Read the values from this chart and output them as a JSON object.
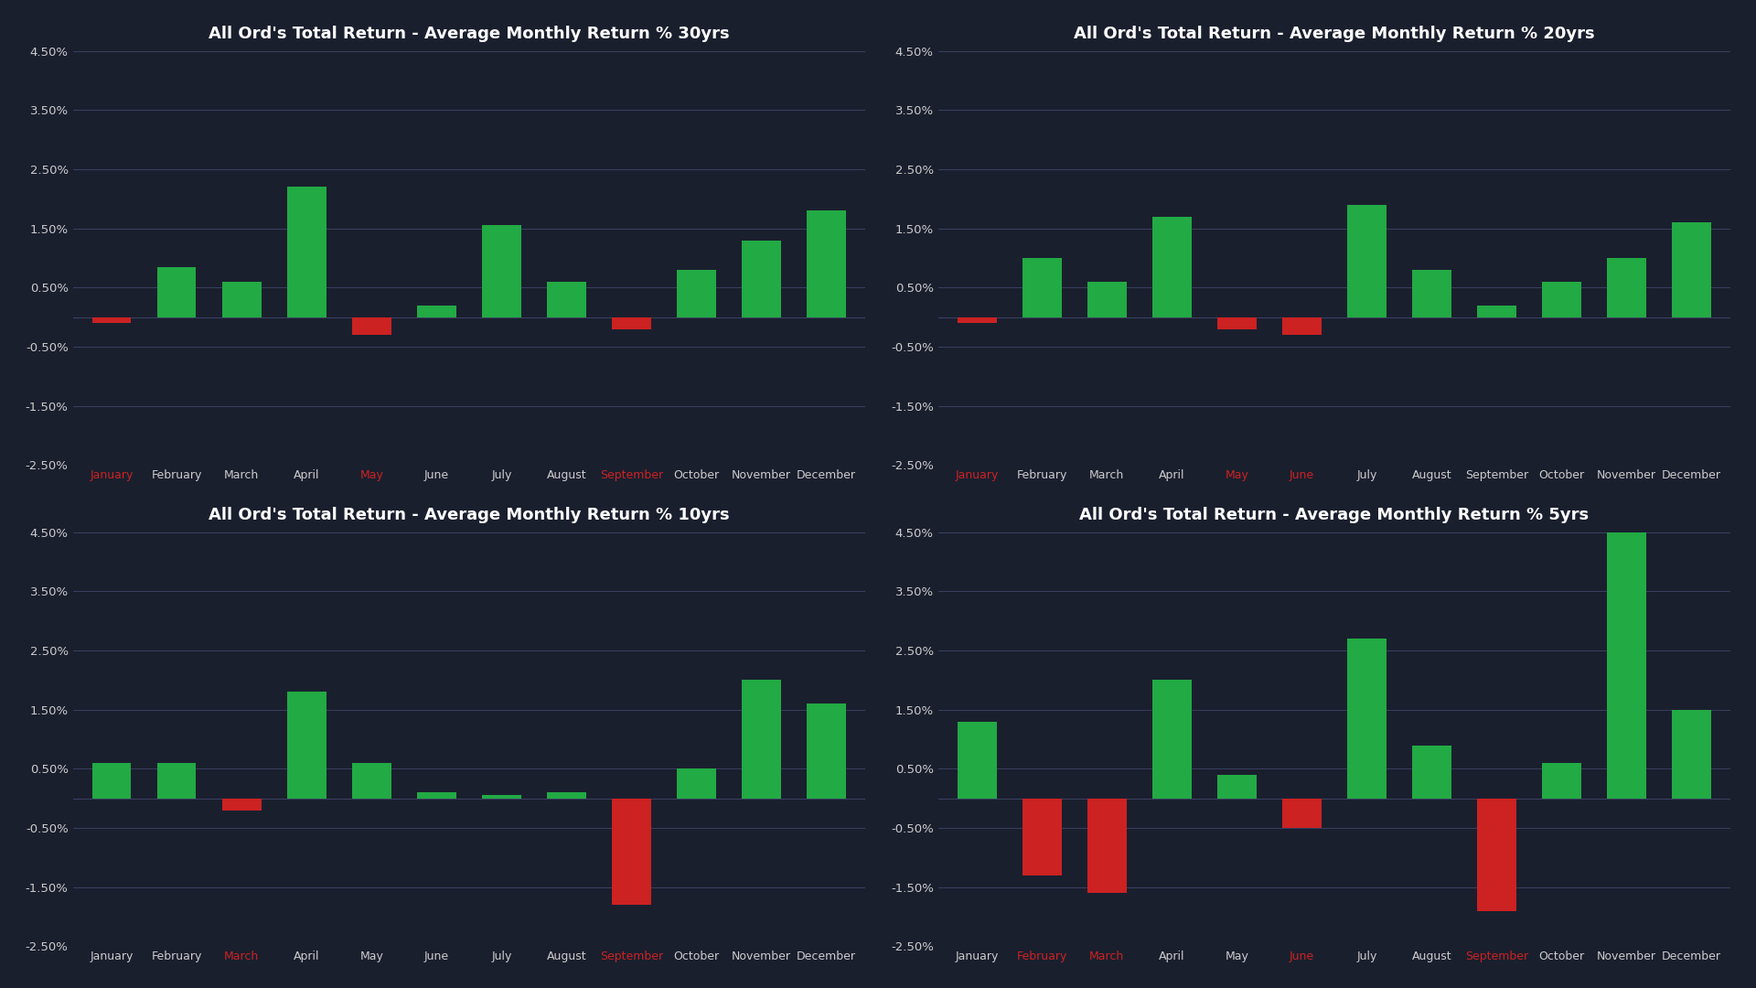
{
  "background_color": "#1a1f2e",
  "axes_background": "#1a1f2e",
  "grid_color": "#3a4060",
  "text_color": "#cccccc",
  "positive_color": "#22aa44",
  "negative_color": "#cc2222",
  "title_color": "#ffffff",
  "months": [
    "January",
    "February",
    "March",
    "April",
    "May",
    "June",
    "July",
    "August",
    "September",
    "October",
    "November",
    "December"
  ],
  "ylim": [
    -0.025,
    0.045
  ],
  "yticks": [
    -0.025,
    -0.015,
    -0.005,
    0.005,
    0.015,
    0.025,
    0.035,
    0.045
  ],
  "ytick_labels": [
    "-2.50%",
    "-1.50%",
    "-0.50%",
    "0.50%",
    "1.50%",
    "2.50%",
    "3.50%",
    "4.50%"
  ],
  "charts": {
    "30yrs": {
      "title": "All Ord's Total Return - Average Monthly Return % 30yrs",
      "values": [
        -0.001,
        0.0085,
        0.006,
        0.022,
        -0.003,
        0.002,
        0.0155,
        0.006,
        -0.002,
        0.008,
        0.013,
        0.018
      ]
    },
    "20yrs": {
      "title": "All Ord's Total Return - Average Monthly Return % 20yrs",
      "values": [
        -0.001,
        0.01,
        0.006,
        0.017,
        -0.002,
        -0.003,
        0.019,
        0.008,
        0.002,
        0.006,
        0.01,
        0.016
      ]
    },
    "10yrs": {
      "title": "All Ord's Total Return - Average Monthly Return % 10yrs",
      "values": [
        0.006,
        0.006,
        -0.002,
        0.018,
        0.006,
        0.001,
        0.0005,
        0.001,
        -0.018,
        0.005,
        0.02,
        0.016
      ]
    },
    "5yrs": {
      "title": "All Ord's Total Return - Average Monthly Return % 5yrs",
      "values": [
        0.013,
        -0.013,
        -0.016,
        0.02,
        0.004,
        -0.005,
        0.027,
        0.009,
        -0.019,
        0.006,
        0.046,
        0.015
      ]
    }
  },
  "layout_order": [
    "30yrs",
    "20yrs",
    "10yrs",
    "5yrs"
  ]
}
